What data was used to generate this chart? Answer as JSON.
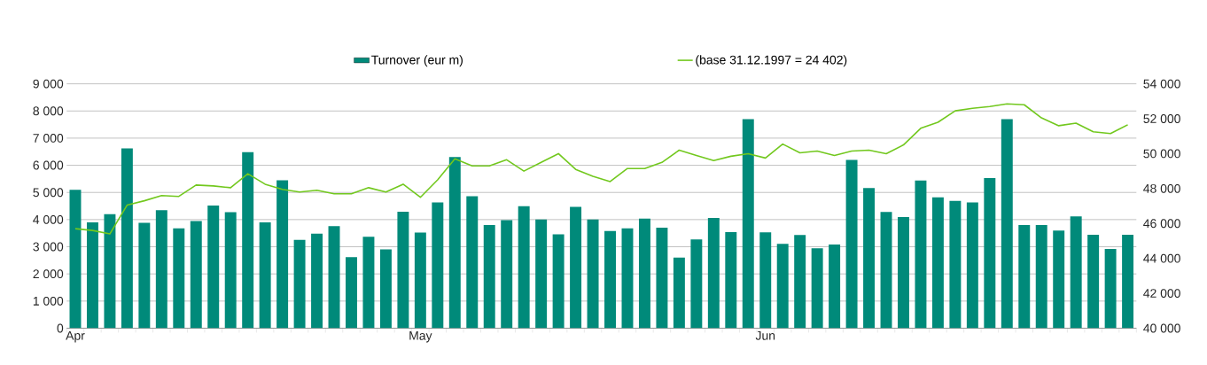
{
  "chart_data": {
    "type": "bar",
    "categories": [
      "Apr",
      null,
      null,
      null,
      null,
      null,
      null,
      null,
      null,
      null,
      null,
      null,
      null,
      null,
      null,
      null,
      null,
      null,
      null,
      null,
      "May",
      null,
      null,
      null,
      null,
      null,
      null,
      null,
      null,
      null,
      null,
      null,
      null,
      null,
      null,
      null,
      null,
      null,
      null,
      null,
      "Jun",
      null,
      null,
      null,
      null,
      null,
      null,
      null,
      null,
      null,
      null,
      null,
      null,
      null,
      null,
      null,
      null,
      null,
      null,
      null,
      null,
      null
    ],
    "series": [
      {
        "name": "Turnover (eur m)",
        "color": "#008a7a",
        "values": [
          5100,
          3900,
          4200,
          6620,
          3880,
          4350,
          3680,
          3950,
          4520,
          4270,
          6480,
          3900,
          5450,
          3250,
          3480,
          3760,
          2620,
          3370,
          2900,
          4290,
          3520,
          4630,
          6300,
          4860,
          3800,
          3980,
          4490,
          4000,
          3460,
          4470,
          4000,
          3580,
          3680,
          4040,
          3700,
          2600,
          3270,
          4060,
          3540,
          7700,
          3530,
          3110,
          3430,
          2940,
          3080,
          6200,
          5160,
          4280,
          4090,
          5440,
          4820,
          4690,
          4630,
          5530,
          7700,
          3800,
          3800,
          3600,
          4120,
          3440,
          2920,
          3440
        ]
      },
      {
        "name": "(base 31.12.1997 = 24 402)",
        "type": "line",
        "axis": "y2",
        "color": "#72c81e",
        "values": [
          45700,
          45600,
          45400,
          47050,
          47300,
          47600,
          47550,
          48200,
          48150,
          48050,
          48850,
          48250,
          47950,
          47800,
          47900,
          47700,
          47700,
          48050,
          47800,
          48250,
          47500,
          48500,
          49700,
          49300,
          49300,
          49650,
          49000,
          49500,
          50000,
          49100,
          48700,
          48400,
          49150,
          49150,
          49500,
          50200,
          49900,
          49600,
          49850,
          50000,
          49750,
          50550,
          50050,
          50150,
          49900,
          50150,
          50200,
          50000,
          50500,
          51450,
          51800,
          52450,
          52600,
          52700,
          52850,
          52800,
          52050,
          51600,
          51750,
          51250,
          51150,
          51650
        ]
      }
    ],
    "ylim": [
      0,
      9000
    ],
    "yticks": [
      0,
      {
        "value": 1000,
        "label": "1 000"
      },
      {
        "value": 2000,
        "label": "2 000"
      },
      {
        "value": 3000,
        "label": "3 000"
      },
      {
        "value": 4000,
        "label": "4 000"
      },
      {
        "value": 5000,
        "label": "5 000"
      },
      {
        "value": 6000,
        "label": "6 000"
      },
      {
        "value": 7000,
        "label": "7 000"
      },
      {
        "value": 8000,
        "label": "8 000"
      },
      {
        "value": 9000,
        "label": "9 000"
      }
    ],
    "y2lim": [
      40000,
      54000
    ],
    "y2ticks": [
      {
        "value": 40000,
        "label": "40 000"
      },
      {
        "value": 42000,
        "label": "42 000"
      },
      {
        "value": 44000,
        "label": "44 000"
      },
      {
        "value": 46000,
        "label": "46 000"
      },
      {
        "value": 48000,
        "label": "48 000"
      },
      {
        "value": 50000,
        "label": "50 000"
      },
      {
        "value": 52000,
        "label": "52 000"
      },
      {
        "value": 54000,
        "label": "54 000"
      }
    ],
    "grid": "y",
    "legend": "top"
  }
}
